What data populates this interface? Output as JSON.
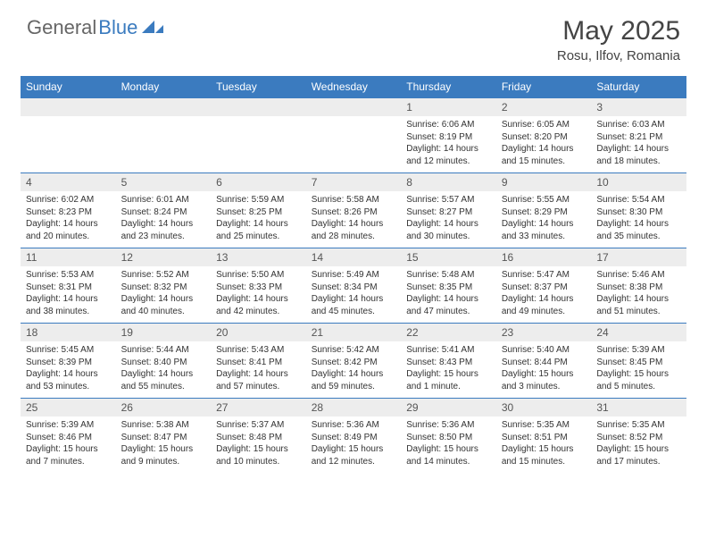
{
  "logo": {
    "text_gray": "General",
    "text_blue": "Blue"
  },
  "title": "May 2025",
  "location": "Rosu, Ilfov, Romania",
  "colors": {
    "header_bg": "#3b7bbf",
    "header_text": "#ffffff",
    "daynum_bg": "#ededed",
    "body_text": "#333333",
    "rule": "#3b7bbf"
  },
  "days_of_week": [
    "Sunday",
    "Monday",
    "Tuesday",
    "Wednesday",
    "Thursday",
    "Friday",
    "Saturday"
  ],
  "weeks": [
    [
      null,
      null,
      null,
      null,
      {
        "n": "1",
        "sunrise": "6:06 AM",
        "sunset": "8:19 PM",
        "daylight": "14 hours and 12 minutes."
      },
      {
        "n": "2",
        "sunrise": "6:05 AM",
        "sunset": "8:20 PM",
        "daylight": "14 hours and 15 minutes."
      },
      {
        "n": "3",
        "sunrise": "6:03 AM",
        "sunset": "8:21 PM",
        "daylight": "14 hours and 18 minutes."
      }
    ],
    [
      {
        "n": "4",
        "sunrise": "6:02 AM",
        "sunset": "8:23 PM",
        "daylight": "14 hours and 20 minutes."
      },
      {
        "n": "5",
        "sunrise": "6:01 AM",
        "sunset": "8:24 PM",
        "daylight": "14 hours and 23 minutes."
      },
      {
        "n": "6",
        "sunrise": "5:59 AM",
        "sunset": "8:25 PM",
        "daylight": "14 hours and 25 minutes."
      },
      {
        "n": "7",
        "sunrise": "5:58 AM",
        "sunset": "8:26 PM",
        "daylight": "14 hours and 28 minutes."
      },
      {
        "n": "8",
        "sunrise": "5:57 AM",
        "sunset": "8:27 PM",
        "daylight": "14 hours and 30 minutes."
      },
      {
        "n": "9",
        "sunrise": "5:55 AM",
        "sunset": "8:29 PM",
        "daylight": "14 hours and 33 minutes."
      },
      {
        "n": "10",
        "sunrise": "5:54 AM",
        "sunset": "8:30 PM",
        "daylight": "14 hours and 35 minutes."
      }
    ],
    [
      {
        "n": "11",
        "sunrise": "5:53 AM",
        "sunset": "8:31 PM",
        "daylight": "14 hours and 38 minutes."
      },
      {
        "n": "12",
        "sunrise": "5:52 AM",
        "sunset": "8:32 PM",
        "daylight": "14 hours and 40 minutes."
      },
      {
        "n": "13",
        "sunrise": "5:50 AM",
        "sunset": "8:33 PM",
        "daylight": "14 hours and 42 minutes."
      },
      {
        "n": "14",
        "sunrise": "5:49 AM",
        "sunset": "8:34 PM",
        "daylight": "14 hours and 45 minutes."
      },
      {
        "n": "15",
        "sunrise": "5:48 AM",
        "sunset": "8:35 PM",
        "daylight": "14 hours and 47 minutes."
      },
      {
        "n": "16",
        "sunrise": "5:47 AM",
        "sunset": "8:37 PM",
        "daylight": "14 hours and 49 minutes."
      },
      {
        "n": "17",
        "sunrise": "5:46 AM",
        "sunset": "8:38 PM",
        "daylight": "14 hours and 51 minutes."
      }
    ],
    [
      {
        "n": "18",
        "sunrise": "5:45 AM",
        "sunset": "8:39 PM",
        "daylight": "14 hours and 53 minutes."
      },
      {
        "n": "19",
        "sunrise": "5:44 AM",
        "sunset": "8:40 PM",
        "daylight": "14 hours and 55 minutes."
      },
      {
        "n": "20",
        "sunrise": "5:43 AM",
        "sunset": "8:41 PM",
        "daylight": "14 hours and 57 minutes."
      },
      {
        "n": "21",
        "sunrise": "5:42 AM",
        "sunset": "8:42 PM",
        "daylight": "14 hours and 59 minutes."
      },
      {
        "n": "22",
        "sunrise": "5:41 AM",
        "sunset": "8:43 PM",
        "daylight": "15 hours and 1 minute."
      },
      {
        "n": "23",
        "sunrise": "5:40 AM",
        "sunset": "8:44 PM",
        "daylight": "15 hours and 3 minutes."
      },
      {
        "n": "24",
        "sunrise": "5:39 AM",
        "sunset": "8:45 PM",
        "daylight": "15 hours and 5 minutes."
      }
    ],
    [
      {
        "n": "25",
        "sunrise": "5:39 AM",
        "sunset": "8:46 PM",
        "daylight": "15 hours and 7 minutes."
      },
      {
        "n": "26",
        "sunrise": "5:38 AM",
        "sunset": "8:47 PM",
        "daylight": "15 hours and 9 minutes."
      },
      {
        "n": "27",
        "sunrise": "5:37 AM",
        "sunset": "8:48 PM",
        "daylight": "15 hours and 10 minutes."
      },
      {
        "n": "28",
        "sunrise": "5:36 AM",
        "sunset": "8:49 PM",
        "daylight": "15 hours and 12 minutes."
      },
      {
        "n": "29",
        "sunrise": "5:36 AM",
        "sunset": "8:50 PM",
        "daylight": "15 hours and 14 minutes."
      },
      {
        "n": "30",
        "sunrise": "5:35 AM",
        "sunset": "8:51 PM",
        "daylight": "15 hours and 15 minutes."
      },
      {
        "n": "31",
        "sunrise": "5:35 AM",
        "sunset": "8:52 PM",
        "daylight": "15 hours and 17 minutes."
      }
    ]
  ]
}
